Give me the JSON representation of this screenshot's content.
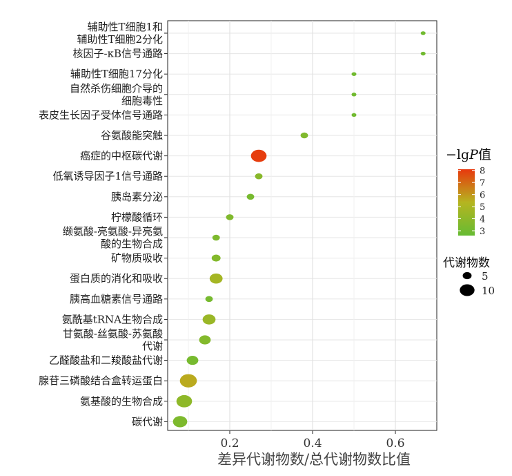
{
  "chart_data": {
    "type": "scatter",
    "xlabel": "差异代谢物数/总代谢物数比值",
    "ylabel": "",
    "xlim": [
      0.05,
      0.7
    ],
    "xticks": [
      0.2,
      0.4,
      0.6
    ],
    "xtick_labels": [
      "0.2",
      "0.4",
      "0.6"
    ],
    "grid": true,
    "color_legend": {
      "title_prefix": "−lg",
      "title_italic": "P",
      "title_suffix": "值",
      "ticks": [
        "8",
        "7",
        "6",
        "5",
        "4",
        "3"
      ],
      "range": [
        2.6,
        8.1
      ],
      "colors": [
        "#66bb33",
        "#b5b520",
        "#e8380d"
      ]
    },
    "size_legend": {
      "title": "代谢物数",
      "entries": [
        {
          "label": "5",
          "count": 5
        },
        {
          "label": "10",
          "count": 10
        }
      ]
    },
    "points": [
      {
        "label_lines": [
          "辅助性T细胞1和",
          "辅助性T细胞2分化"
        ],
        "x": 0.667,
        "neglogp": 3.0,
        "count": 1
      },
      {
        "label_lines": [
          "核因子-κB信号通路"
        ],
        "x": 0.667,
        "neglogp": 3.0,
        "count": 1
      },
      {
        "label_lines": [
          "辅助性T细胞17分化"
        ],
        "x": 0.5,
        "neglogp": 3.0,
        "count": 1
      },
      {
        "label_lines": [
          "自然杀伤细胞介导的",
          "细胞毒性"
        ],
        "x": 0.5,
        "neglogp": 3.0,
        "count": 1
      },
      {
        "label_lines": [
          "表皮生长因子受体信号通路"
        ],
        "x": 0.5,
        "neglogp": 3.0,
        "count": 1
      },
      {
        "label_lines": [
          "谷氨酸能突触"
        ],
        "x": 0.38,
        "neglogp": 3.5,
        "count": 3
      },
      {
        "label_lines": [
          "癌症的中枢碳代谢"
        ],
        "x": 0.27,
        "neglogp": 8.0,
        "count": 9
      },
      {
        "label_lines": [
          "低氧诱导因子1信号通路"
        ],
        "x": 0.27,
        "neglogp": 3.8,
        "count": 3
      },
      {
        "label_lines": [
          "胰岛素分泌"
        ],
        "x": 0.25,
        "neglogp": 3.2,
        "count": 3
      },
      {
        "label_lines": [
          "柠檬酸循环"
        ],
        "x": 0.2,
        "neglogp": 3.5,
        "count": 3
      },
      {
        "label_lines": [
          "缬氨酸-亮氨酸-异亮氨",
          "酸的生物合成"
        ],
        "x": 0.167,
        "neglogp": 3.4,
        "count": 3
      },
      {
        "label_lines": [
          "矿物质吸收"
        ],
        "x": 0.167,
        "neglogp": 3.6,
        "count": 4
      },
      {
        "label_lines": [
          "蛋白质的消化和吸收"
        ],
        "x": 0.167,
        "neglogp": 4.8,
        "count": 7
      },
      {
        "label_lines": [
          "胰高血糖素信号通路"
        ],
        "x": 0.15,
        "neglogp": 3.2,
        "count": 3
      },
      {
        "label_lines": [
          "氨酰基tRNA生物合成"
        ],
        "x": 0.15,
        "neglogp": 4.4,
        "count": 7
      },
      {
        "label_lines": [
          "甘氨酸-丝氨酸-苏氨酸",
          "代谢"
        ],
        "x": 0.14,
        "neglogp": 3.6,
        "count": 6
      },
      {
        "label_lines": [
          "乙醛酸盐和二羧酸盐代谢"
        ],
        "x": 0.11,
        "neglogp": 3.2,
        "count": 6
      },
      {
        "label_lines": [
          "腺苷三磷酸结合盒转运蛋白"
        ],
        "x": 0.1,
        "neglogp": 5.6,
        "count": 10
      },
      {
        "label_lines": [
          "氨基酸的生物合成"
        ],
        "x": 0.09,
        "neglogp": 4.0,
        "count": 9
      },
      {
        "label_lines": [
          "碳代谢"
        ],
        "x": 0.08,
        "neglogp": 3.4,
        "count": 8
      }
    ]
  }
}
